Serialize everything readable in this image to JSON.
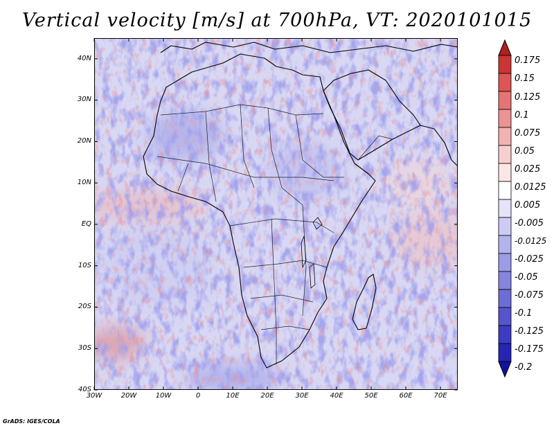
{
  "title": "Vertical velocity [m/s] at 700hPa, VT: 2020101015",
  "credit": "GrADS: IGES/COLA",
  "y_axis": {
    "labels": [
      "40N",
      "30N",
      "20N",
      "10N",
      "EQ",
      "10S",
      "20S",
      "30S",
      "40S"
    ],
    "values": [
      40,
      30,
      20,
      10,
      0,
      -10,
      -20,
      -30,
      -40
    ]
  },
  "x_axis": {
    "labels": [
      "30W",
      "20W",
      "10W",
      "0",
      "10E",
      "20E",
      "30E",
      "40E",
      "50E",
      "60E",
      "70E"
    ],
    "values": [
      -30,
      -20,
      -10,
      0,
      10,
      20,
      30,
      40,
      50,
      60,
      70
    ]
  },
  "extent": {
    "lon_min": -30,
    "lon_max": 75,
    "lat_min": -40,
    "lat_max": 45
  },
  "colorbar": {
    "colors": [
      "#b02020",
      "#cc3535",
      "#dd5555",
      "#e57474",
      "#ec9393",
      "#f2b2b2",
      "#f7cfcf",
      "#fbe6e6",
      "#ffffff",
      "#e3e3fa",
      "#cbcbf4",
      "#b3b3ee",
      "#9b9be6",
      "#8585de",
      "#6d6dd6",
      "#5555cc",
      "#3c3cc2",
      "#2525b4",
      "#1212a0"
    ],
    "labels": [
      "0.175",
      "0.15",
      "0.125",
      "0.1",
      "0.075",
      "0.05",
      "0.025",
      "0.0125",
      "0.005",
      "-0.005",
      "-0.0125",
      "-0.025",
      "-0.05",
      "-0.075",
      "-0.1",
      "-0.125",
      "-0.175",
      "-0.2"
    ]
  }
}
